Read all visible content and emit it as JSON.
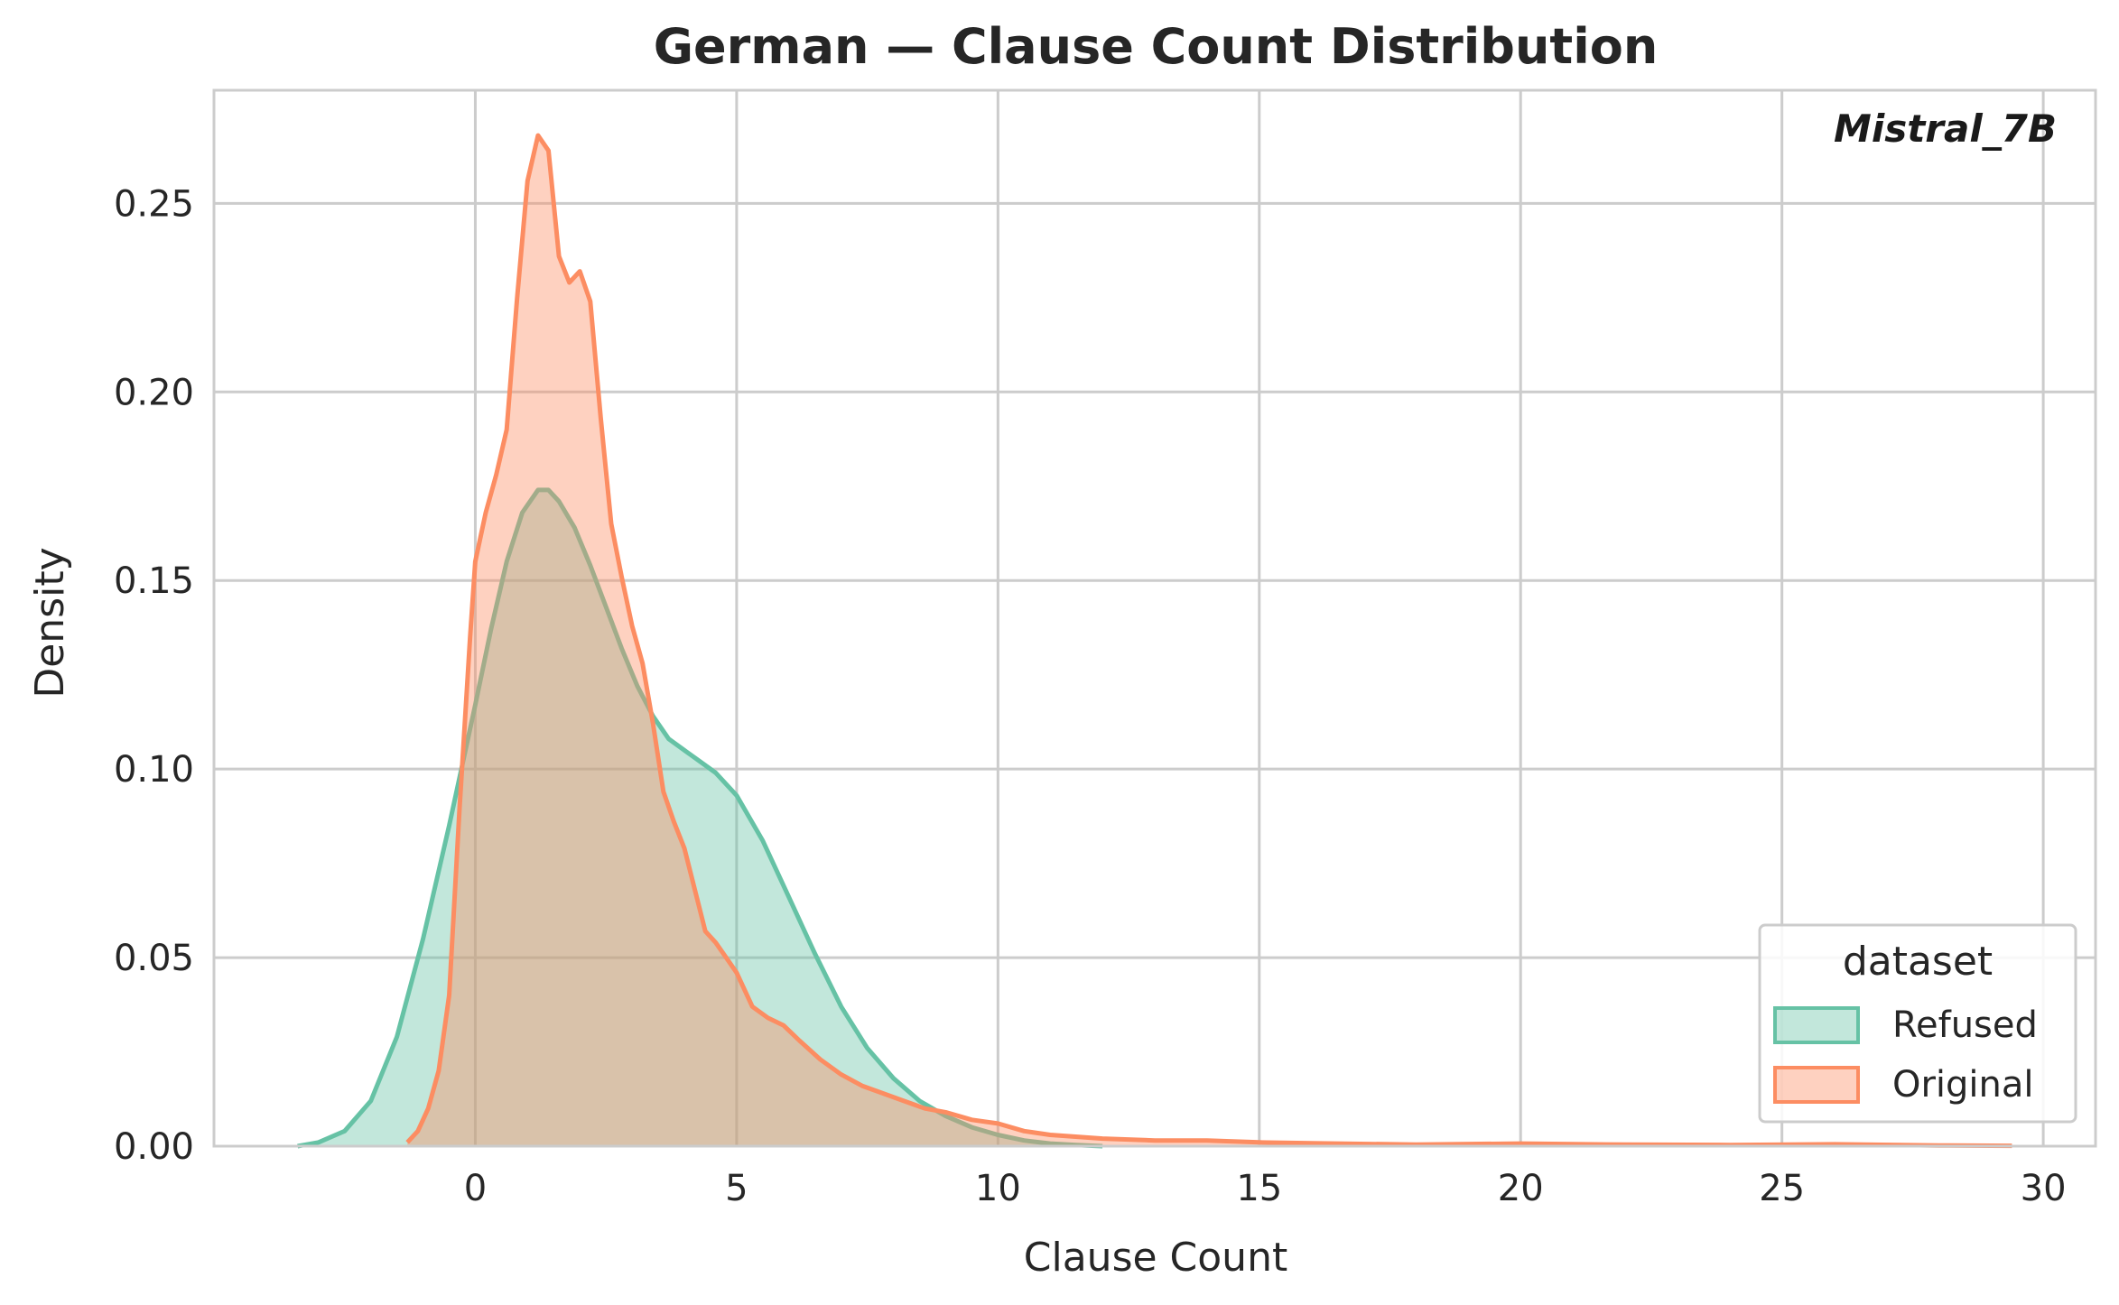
{
  "chart_data": {
    "type": "area",
    "title": "German — Clause Count Distribution",
    "annotation": "Mistral_7B",
    "xlabel": "Clause Count",
    "ylabel": "Density",
    "xlim": [
      -5,
      31
    ],
    "ylim": [
      0,
      0.28
    ],
    "xticks": [
      0,
      5,
      10,
      15,
      20,
      25,
      30
    ],
    "yticks": [
      0.0,
      0.05,
      0.1,
      0.15,
      0.2,
      0.25
    ],
    "xtick_labels": [
      "0",
      "5",
      "10",
      "15",
      "20",
      "25",
      "30"
    ],
    "ytick_labels": [
      "0.00",
      "0.05",
      "0.10",
      "0.15",
      "0.20",
      "0.25"
    ],
    "grid": true,
    "legend": {
      "title": "dataset",
      "placement": "lower-right"
    },
    "series": [
      {
        "name": "Refused",
        "color": "#66c2a5",
        "fill_opacity": 0.4,
        "x": [
          -3.4,
          -3.0,
          -2.5,
          -2.0,
          -1.5,
          -1.0,
          -0.5,
          0.0,
          0.3,
          0.6,
          0.9,
          1.2,
          1.4,
          1.6,
          1.9,
          2.2,
          2.5,
          2.8,
          3.1,
          3.4,
          3.7,
          4.0,
          4.3,
          4.6,
          5.0,
          5.5,
          6.0,
          6.5,
          7.0,
          7.5,
          8.0,
          8.5,
          9.0,
          9.5,
          10.0,
          10.5,
          11.0,
          11.5,
          12.0
        ],
        "y": [
          0.0,
          0.001,
          0.004,
          0.012,
          0.029,
          0.055,
          0.085,
          0.117,
          0.137,
          0.155,
          0.168,
          0.174,
          0.174,
          0.171,
          0.164,
          0.154,
          0.143,
          0.132,
          0.122,
          0.114,
          0.108,
          0.105,
          0.102,
          0.099,
          0.093,
          0.081,
          0.066,
          0.051,
          0.037,
          0.026,
          0.018,
          0.012,
          0.008,
          0.005,
          0.003,
          0.0015,
          0.0007,
          0.0003,
          0.0
        ]
      },
      {
        "name": "Original",
        "color": "#fc8d62",
        "fill_opacity": 0.4,
        "x": [
          -1.3,
          -1.1,
          -0.9,
          -0.7,
          -0.5,
          -0.3,
          -0.1,
          0.0,
          0.2,
          0.4,
          0.6,
          0.8,
          1.0,
          1.2,
          1.4,
          1.6,
          1.8,
          2.0,
          2.2,
          2.4,
          2.6,
          2.8,
          3.0,
          3.2,
          3.4,
          3.6,
          3.8,
          4.0,
          4.2,
          4.4,
          4.6,
          4.8,
          5.0,
          5.3,
          5.6,
          5.9,
          6.2,
          6.6,
          7.0,
          7.4,
          7.8,
          8.2,
          8.6,
          9.0,
          9.5,
          10.0,
          10.5,
          11.0,
          12.0,
          13.0,
          14.0,
          15.0,
          16.0,
          18.0,
          20.0,
          22.0,
          24.0,
          26.0,
          28.0,
          29.4
        ],
        "y": [
          0.001,
          0.004,
          0.01,
          0.02,
          0.04,
          0.09,
          0.135,
          0.155,
          0.168,
          0.178,
          0.19,
          0.225,
          0.256,
          0.268,
          0.264,
          0.236,
          0.229,
          0.232,
          0.224,
          0.193,
          0.165,
          0.151,
          0.138,
          0.128,
          0.112,
          0.094,
          0.086,
          0.079,
          0.068,
          0.057,
          0.054,
          0.05,
          0.046,
          0.037,
          0.034,
          0.032,
          0.028,
          0.023,
          0.019,
          0.016,
          0.014,
          0.012,
          0.01,
          0.009,
          0.007,
          0.006,
          0.004,
          0.003,
          0.002,
          0.0015,
          0.0015,
          0.001,
          0.0008,
          0.0004,
          0.0007,
          0.0004,
          0.0003,
          0.0005,
          0.0002,
          0.0001
        ]
      }
    ]
  }
}
